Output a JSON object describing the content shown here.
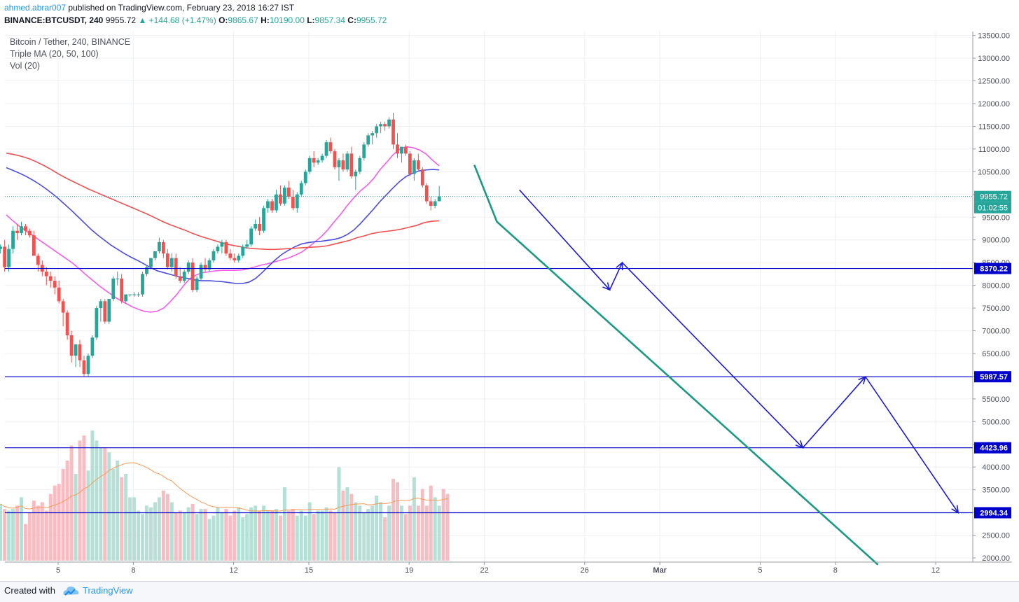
{
  "header": {
    "author": "ahmed.abrar007",
    "published_text": "published on TradingView.com, February 23, 2018 16:27 IST",
    "symbol": "BINANCE:BTCUSDT, 240",
    "last": "9955.72",
    "change": "▲ +144.68 (+1.47%)",
    "o_label": "O:",
    "o": "9865.67",
    "h_label": "H:",
    "h": "10190.00",
    "l_label": "L:",
    "l": "9857.34",
    "c_label": "C:",
    "c": "9955.72"
  },
  "legend": {
    "title": "Bitcoin / Tether, 240, BINANCE",
    "ma": "Triple MA (20, 50, 100)",
    "vol": "Vol (20)"
  },
  "footer": {
    "created_with": "Created with",
    "brand": "TradingView"
  },
  "colors": {
    "up": "#26a69a",
    "down": "#ef5350",
    "ma20": "#f55de8",
    "ma50": "#4c4ce0",
    "ma100": "#f05050",
    "hline": "#0000cc",
    "trend": "#1a9a84",
    "arrow": "#1a1ad6"
  },
  "chart_data": {
    "type": "candlestick",
    "title": "Bitcoin / Tether, 240, BINANCE",
    "ylim": [
      1800,
      13700
    ],
    "y_ticks": [
      2000,
      2500,
      3000,
      3500,
      4000,
      4500,
      5000,
      5500,
      6000,
      6500,
      7000,
      7500,
      8000,
      8500,
      9000,
      9500,
      10000,
      10500,
      11000,
      11500,
      12000,
      12500,
      13000,
      13500
    ],
    "x_ticks": [
      {
        "label": "5",
        "day": 5
      },
      {
        "label": "8",
        "day": 8
      },
      {
        "label": "12",
        "day": 12
      },
      {
        "label": "15",
        "day": 15
      },
      {
        "label": "19",
        "day": 19
      },
      {
        "label": "22",
        "day": 22
      },
      {
        "label": "26",
        "day": 26
      },
      {
        "label": "Mar",
        "day": 29
      },
      {
        "label": "5",
        "day": 33
      },
      {
        "label": "8",
        "day": 36
      },
      {
        "label": "12",
        "day": 40
      }
    ],
    "start_day": 2.7,
    "candles_per_day": 6,
    "candles": [
      [
        8800,
        8900,
        8700,
        8850
      ],
      [
        8850,
        9000,
        8300,
        8400
      ],
      [
        8400,
        8900,
        8300,
        8800
      ],
      [
        8800,
        9300,
        8700,
        9200
      ],
      [
        9200,
        9350,
        9000,
        9150
      ],
      [
        9150,
        9400,
        9100,
        9300
      ],
      [
        9300,
        9350,
        9100,
        9200
      ],
      [
        9200,
        9250,
        9050,
        9100
      ],
      [
        9100,
        9200,
        8700,
        8650
      ],
      [
        8650,
        8700,
        8300,
        8450
      ],
      [
        8450,
        8550,
        8200,
        8300
      ],
      [
        8300,
        8400,
        8000,
        8200
      ],
      [
        8200,
        8300,
        7950,
        8100
      ],
      [
        8100,
        8200,
        7800,
        7950
      ],
      [
        7950,
        8100,
        7600,
        7650
      ],
      [
        7650,
        7700,
        7100,
        7400
      ],
      [
        7400,
        7450,
        6800,
        6900
      ],
      [
        6900,
        7000,
        6300,
        6450
      ],
      [
        6450,
        6700,
        6200,
        6700
      ],
      [
        6700,
        6800,
        6200,
        6350
      ],
      [
        6350,
        6450,
        6000,
        6050
      ],
      [
        6050,
        6500,
        6000,
        6450
      ],
      [
        6450,
        6900,
        6400,
        6850
      ],
      [
        6850,
        7550,
        6800,
        7500
      ],
      [
        7500,
        7700,
        7200,
        7650
      ],
      [
        7650,
        7700,
        7150,
        7200
      ],
      [
        7200,
        7700,
        7150,
        7700
      ],
      [
        7700,
        8200,
        7650,
        8150
      ],
      [
        8150,
        8300,
        8000,
        8150
      ],
      [
        8150,
        8250,
        7600,
        7650
      ],
      [
        7650,
        7800,
        7600,
        7800
      ],
      [
        7800,
        7800,
        7750,
        7800
      ],
      [
        7800,
        7850,
        7750,
        7800
      ],
      [
        7800,
        7850,
        7750,
        7800
      ],
      [
        7800,
        8300,
        7750,
        8250
      ],
      [
        8250,
        8450,
        8200,
        8400
      ],
      [
        8400,
        8600,
        8350,
        8600
      ],
      [
        8600,
        8750,
        8550,
        8750
      ],
      [
        8750,
        9050,
        8700,
        8950
      ],
      [
        8950,
        9000,
        8600,
        8700
      ],
      [
        8700,
        8800,
        8350,
        8400
      ],
      [
        8400,
        8700,
        8300,
        8600
      ],
      [
        8600,
        8700,
        8150,
        8200
      ],
      [
        8200,
        8400,
        8050,
        8100
      ],
      [
        8100,
        8350,
        8050,
        8300
      ],
      [
        8300,
        8550,
        8250,
        8500
      ],
      [
        8500,
        8600,
        7850,
        7900
      ],
      [
        7900,
        8200,
        7850,
        8150
      ],
      [
        8150,
        8500,
        8100,
        8450
      ],
      [
        8450,
        8600,
        8300,
        8350
      ],
      [
        8350,
        8600,
        8300,
        8550
      ],
      [
        8550,
        8800,
        8500,
        8750
      ],
      [
        8750,
        8900,
        8700,
        8850
      ],
      [
        8850,
        9000,
        8700,
        8950
      ],
      [
        8950,
        9000,
        8650,
        8700
      ],
      [
        8700,
        8800,
        8550,
        8600
      ],
      [
        8600,
        8700,
        8500,
        8550
      ],
      [
        8550,
        8700,
        8500,
        8650
      ],
      [
        8650,
        8900,
        8600,
        8850
      ],
      [
        8850,
        9000,
        8800,
        8900
      ],
      [
        8900,
        9300,
        8850,
        9250
      ],
      [
        9250,
        9450,
        9200,
        9350
      ],
      [
        9350,
        9500,
        9100,
        9200
      ],
      [
        9200,
        9750,
        9150,
        9700
      ],
      [
        9700,
        9900,
        9600,
        9850
      ],
      [
        9850,
        9900,
        9600,
        9650
      ],
      [
        9650,
        10100,
        9600,
        10000
      ],
      [
        10000,
        10200,
        9750,
        9800
      ],
      [
        9800,
        10200,
        9750,
        10150
      ],
      [
        10150,
        10300,
        9900,
        9950
      ],
      [
        9950,
        10100,
        9650,
        9700
      ],
      [
        9700,
        10050,
        9600,
        10000
      ],
      [
        10000,
        10300,
        9950,
        10250
      ],
      [
        10250,
        10550,
        10200,
        10500
      ],
      [
        10500,
        10850,
        10450,
        10800
      ],
      [
        10800,
        10950,
        10600,
        10700
      ],
      [
        10700,
        10800,
        10650,
        10750
      ],
      [
        10750,
        10900,
        10700,
        10850
      ],
      [
        10850,
        11200,
        10800,
        11150
      ],
      [
        11150,
        11250,
        10900,
        10950
      ],
      [
        10950,
        11000,
        10550,
        10600
      ],
      [
        10600,
        10800,
        10300,
        10750
      ],
      [
        10750,
        10900,
        10500,
        10550
      ],
      [
        10550,
        10950,
        10500,
        10900
      ],
      [
        10900,
        11050,
        10350,
        10400
      ],
      [
        10400,
        10550,
        10100,
        10500
      ],
      [
        10500,
        10850,
        10450,
        10800
      ],
      [
        10800,
        11150,
        10750,
        11100
      ],
      [
        11100,
        11350,
        11050,
        11300
      ],
      [
        11300,
        11400,
        11100,
        11350
      ],
      [
        11350,
        11550,
        11250,
        11500
      ],
      [
        11500,
        11600,
        11350,
        11550
      ],
      [
        11550,
        11600,
        11400,
        11500
      ],
      [
        11500,
        11700,
        11450,
        11650
      ],
      [
        11650,
        11800,
        11000,
        11100
      ],
      [
        11100,
        11350,
        10800,
        10900
      ],
      [
        10900,
        11000,
        10700,
        11050
      ],
      [
        11050,
        11100,
        10850,
        10900
      ],
      [
        10900,
        10950,
        10400,
        10450
      ],
      [
        10450,
        10800,
        10300,
        10750
      ],
      [
        10750,
        10900,
        10500,
        10550
      ],
      [
        10550,
        10600,
        10150,
        10200
      ],
      [
        10200,
        10250,
        9800,
        9850
      ],
      [
        9850,
        9950,
        9650,
        9750
      ],
      [
        9750,
        9900,
        9700,
        9850
      ],
      [
        9850,
        10190,
        9857,
        9956
      ]
    ],
    "volumes": [
      340,
      310,
      300,
      310,
      330,
      380,
      220,
      290,
      360,
      330,
      350,
      300,
      400,
      450,
      460,
      550,
      600,
      690,
      520,
      720,
      750,
      540,
      780,
      720,
      680,
      680,
      650,
      550,
      600,
      500,
      520,
      380,
      380,
      300,
      280,
      330,
      320,
      350,
      380,
      420,
      400,
      350,
      290,
      300,
      290,
      320,
      340,
      280,
      310,
      310,
      250,
      270,
      320,
      290,
      310,
      270,
      300,
      320,
      260,
      280,
      320,
      330,
      300,
      330,
      300,
      300,
      310,
      270,
      440,
      300,
      310,
      270,
      300,
      270,
      350,
      280,
      300,
      300,
      320,
      300,
      290,
      560,
      420,
      440,
      400,
      350,
      330,
      290,
      310,
      330,
      390,
      350,
      260,
      330,
      490,
      470,
      330,
      280,
      330,
      500,
      330,
      430,
      330,
      450,
      380,
      330,
      430,
      400
    ],
    "ma_volume_note": "Volume SMA(20) overlay",
    "series": [
      {
        "name": "MA20",
        "values": [
          9550,
          9420,
          9300,
          9200,
          9100,
          9000,
          8900,
          8800,
          8700,
          8600,
          8500,
          8380,
          8250,
          8130,
          8010,
          7900,
          7800,
          7700,
          7620,
          7540,
          7480,
          7430,
          7410,
          7430,
          7500,
          7640,
          7800,
          7990,
          8150,
          8230,
          8280,
          8300,
          8320,
          8330,
          8330,
          8330,
          8340,
          8370,
          8410,
          8450,
          8480,
          8520,
          8560,
          8600,
          8660,
          8730,
          8830,
          8950,
          9070,
          9220,
          9400,
          9570,
          9760,
          9930,
          10080,
          10200,
          10350,
          10550,
          10710,
          10880,
          11000,
          11050,
          11030,
          10980,
          10890,
          10750,
          10630
        ]
      },
      {
        "name": "MA50",
        "values": [
          10590,
          10530,
          10470,
          10400,
          10320,
          10230,
          10130,
          10020,
          9900,
          9770,
          9640,
          9500,
          9360,
          9220,
          9100,
          8990,
          8880,
          8790,
          8700,
          8620,
          8550,
          8470,
          8390,
          8320,
          8280,
          8240,
          8200,
          8170,
          8140,
          8110,
          8100,
          8100,
          8090,
          8080,
          8060,
          8040,
          8040,
          8070,
          8150,
          8280,
          8420,
          8560,
          8680,
          8770,
          8850,
          8910,
          8940,
          8960,
          8970,
          8990,
          9010,
          9050,
          9120,
          9220,
          9360,
          9520,
          9680,
          9850,
          10000,
          10150,
          10290,
          10400,
          10470,
          10520,
          10540,
          10550,
          10540
        ]
      },
      {
        "name": "MA100",
        "values": [
          10910,
          10880,
          10840,
          10790,
          10720,
          10640,
          10550,
          10450,
          10360,
          10280,
          10200,
          10120,
          10050,
          9980,
          9910,
          9840,
          9770,
          9700,
          9630,
          9560,
          9480,
          9400,
          9330,
          9270,
          9210,
          9140,
          9080,
          9030,
          8980,
          8930,
          8890,
          8860,
          8830,
          8810,
          8800,
          8790,
          8790,
          8800,
          8810,
          8820,
          8830,
          8840,
          8850,
          8870,
          8910,
          8950,
          8990,
          9050,
          9090,
          9140,
          9170,
          9190,
          9210,
          9240,
          9280,
          9320,
          9380,
          9410,
          9420
        ]
      }
    ],
    "price_label": {
      "value": 9955.72,
      "label": "9955.72",
      "countdown": "01:02:55"
    },
    "horizontal_levels": [
      {
        "value": 8370.22,
        "label": "8370.22"
      },
      {
        "value": 5987.57,
        "label": "5987.57"
      },
      {
        "value": 4423.96,
        "label": "4423.96"
      },
      {
        "value": 2994.34,
        "label": "2994.34"
      }
    ],
    "trend_line": [
      {
        "day": 21.6,
        "price": 10650
      },
      {
        "day": 22.5,
        "price": 9400
      },
      {
        "day": 37.7,
        "price": 1850
      }
    ],
    "projected_path": [
      {
        "day": 23.4,
        "price": 10100
      },
      {
        "day": 27.0,
        "price": 7900
      },
      {
        "day": 27.5,
        "price": 8500
      },
      {
        "day": 34.7,
        "price": 4423.96
      },
      {
        "day": 37.2,
        "price": 5987.57
      },
      {
        "day": 40.9,
        "price": 2994.34
      }
    ]
  }
}
